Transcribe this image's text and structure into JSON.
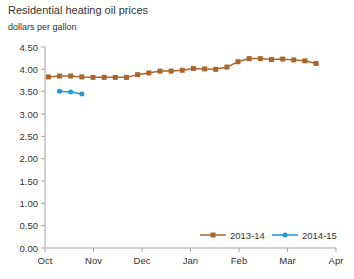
{
  "chart_data": {
    "type": "line",
    "title": "Residential heating oil prices",
    "subtitle": "dollars per gallon",
    "x": [
      0.07,
      0.3,
      0.53,
      0.76,
      0.99,
      1.22,
      1.45,
      1.68,
      1.91,
      2.14,
      2.37,
      2.6,
      2.83,
      3.06,
      3.29,
      3.52,
      3.75,
      3.98,
      4.21,
      4.44,
      4.67,
      4.9,
      5.13,
      5.36,
      5.59
    ],
    "series": [
      {
        "name": "2013-14",
        "color": "#a8662c",
        "marker": "square",
        "values": [
          3.83,
          3.85,
          3.85,
          3.83,
          3.82,
          3.82,
          3.82,
          3.82,
          3.88,
          3.92,
          3.96,
          3.96,
          3.98,
          4.02,
          4.01,
          4.0,
          4.05,
          4.17,
          4.24,
          4.24,
          4.22,
          4.23,
          4.21,
          4.19,
          4.13
        ]
      },
      {
        "name": "2014-15",
        "color": "#1f9bd1",
        "marker": "circle",
        "values": [
          null,
          3.51,
          3.49,
          3.45,
          null,
          null,
          null,
          null,
          null,
          null,
          null,
          null,
          null,
          null,
          null,
          null,
          null,
          null,
          null,
          null,
          null,
          null,
          null,
          null,
          null
        ]
      }
    ],
    "xlim": [
      0,
      6
    ],
    "xticks": [
      {
        "value": 0,
        "label": "Oct"
      },
      {
        "value": 1,
        "label": "Nov"
      },
      {
        "value": 2,
        "label": "Dec"
      },
      {
        "value": 3,
        "label": "Jan"
      },
      {
        "value": 4,
        "label": "Feb"
      },
      {
        "value": 5,
        "label": "Mar"
      },
      {
        "value": 6,
        "label": "Apr"
      }
    ],
    "ylim": [
      0,
      4.5
    ],
    "yticks": [
      {
        "value": 0,
        "label": "0.00"
      },
      {
        "value": 0.5,
        "label": "0.50"
      },
      {
        "value": 1,
        "label": "1.00"
      },
      {
        "value": 1.5,
        "label": "1.50"
      },
      {
        "value": 2,
        "label": "2.00"
      },
      {
        "value": 2.5,
        "label": "2.50"
      },
      {
        "value": 3,
        "label": "3.00"
      },
      {
        "value": 3.5,
        "label": "3.50"
      },
      {
        "value": 4,
        "label": "4.00"
      },
      {
        "value": 4.5,
        "label": "4.50"
      }
    ],
    "grid": false,
    "legend": "bottom-right"
  }
}
